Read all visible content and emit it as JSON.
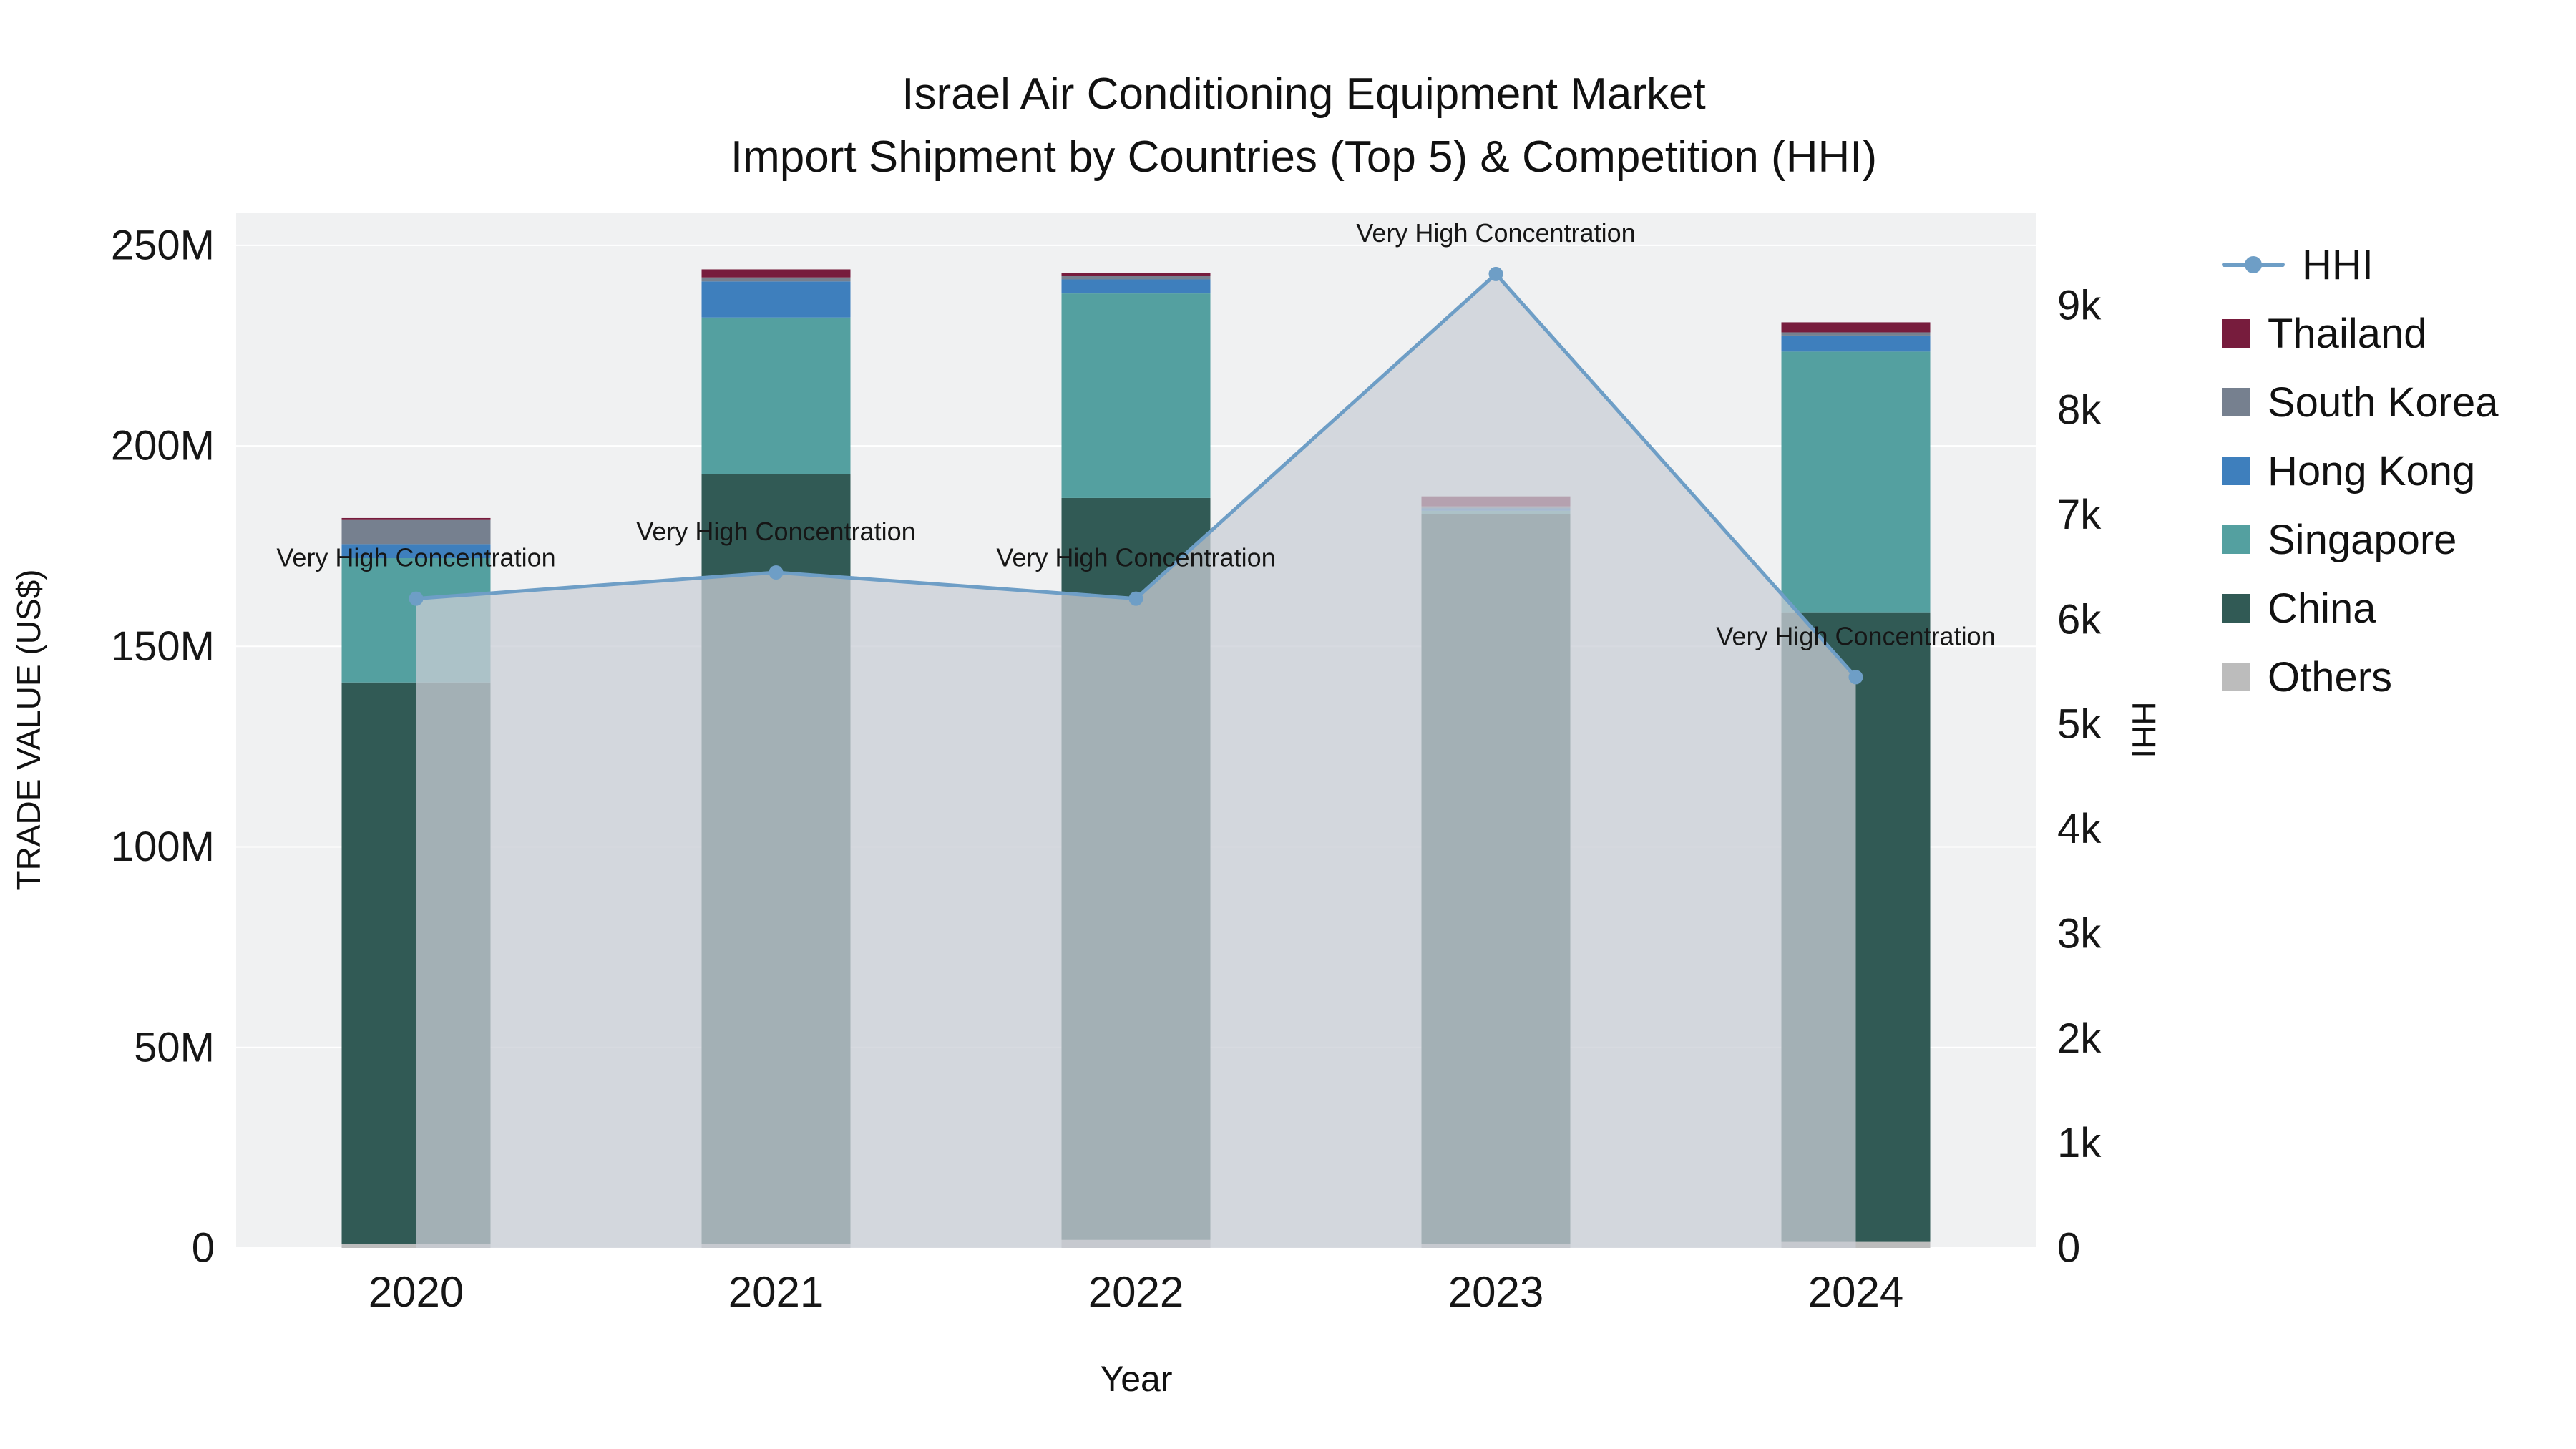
{
  "title": {
    "line1": "Israel Air Conditioning Equipment Market",
    "line2": "Import Shipment by Countries (Top 5) & Competition (HHI)"
  },
  "axes": {
    "x_label": "Year",
    "y_left_label": "TRADE VALUE (US$)",
    "y_right_label": "HHI",
    "y_left_ticks": [
      "0",
      "50M",
      "100M",
      "150M",
      "200M",
      "250M"
    ],
    "y_right_ticks": [
      "0",
      "1k",
      "2k",
      "3k",
      "4k",
      "5k",
      "6k",
      "7k",
      "8k",
      "9k"
    ],
    "x_ticks": [
      "2020",
      "2021",
      "2022",
      "2023",
      "2024"
    ]
  },
  "legend": [
    {
      "label": "HHI",
      "type": "line",
      "color": "#6e9ec6"
    },
    {
      "label": "Thailand",
      "type": "square",
      "color": "#771c3d"
    },
    {
      "label": "South Korea",
      "type": "square",
      "color": "#76808f"
    },
    {
      "label": "Hong Kong",
      "type": "square",
      "color": "#3e7fbd"
    },
    {
      "label": "Singapore",
      "type": "square",
      "color": "#54a0a0"
    },
    {
      "label": "China",
      "type": "square",
      "color": "#315a55"
    },
    {
      "label": "Others",
      "type": "square",
      "color": "#bcbcbc"
    }
  ],
  "colors": {
    "plot_bg": "#f0f1f2",
    "grid": "#ffffff",
    "text": "#161616"
  },
  "chart_data": {
    "type": "bar",
    "title": "Israel Air Conditioning Equipment Market — Import Shipment by Countries (Top 5) & Competition (HHI)",
    "xlabel": "Year",
    "ylabel_left": "TRADE VALUE (US$)",
    "ylabel_right": "HHI",
    "categories": [
      "2020",
      "2021",
      "2022",
      "2023",
      "2024"
    ],
    "series": [
      {
        "name": "Others",
        "color": "#bcbcbc",
        "values": [
          1,
          1,
          2,
          1,
          1.5
        ]
      },
      {
        "name": "China",
        "color": "#315a55",
        "values": [
          140,
          192,
          185,
          182,
          157
        ]
      },
      {
        "name": "Singapore",
        "color": "#54a0a0",
        "values": [
          31,
          39,
          51,
          0.8,
          65
        ]
      },
      {
        "name": "Hong Kong",
        "color": "#3e7fbd",
        "values": [
          3.5,
          9,
          3.5,
          0.6,
          4
        ]
      },
      {
        "name": "South Korea",
        "color": "#76808f",
        "values": [
          6,
          1,
          0.8,
          0.5,
          0.8
        ]
      },
      {
        "name": "Thailand",
        "color": "#771c3d",
        "values": [
          0.5,
          2,
          0.8,
          2.5,
          2.5
        ]
      }
    ],
    "bar_unit": "M US$",
    "line_series": {
      "name": "HHI",
      "color": "#6e9ec6",
      "fill_color": "#c9ced6",
      "fill_opacity": 0.75,
      "values": [
        6200,
        6450,
        6200,
        9300,
        5450
      ]
    },
    "annotations": [
      "Very High Concentration",
      "Very High Concentration",
      "Very High Concentration",
      "Very High Concentration",
      "Very High Concentration"
    ],
    "y_left": {
      "min": 0,
      "max": 258,
      "tick_step": 50,
      "unit": "M"
    },
    "y_right": {
      "min": 0,
      "max": 9880,
      "tick_step": 1000
    },
    "grid": true,
    "legend_position": "right-outside"
  }
}
